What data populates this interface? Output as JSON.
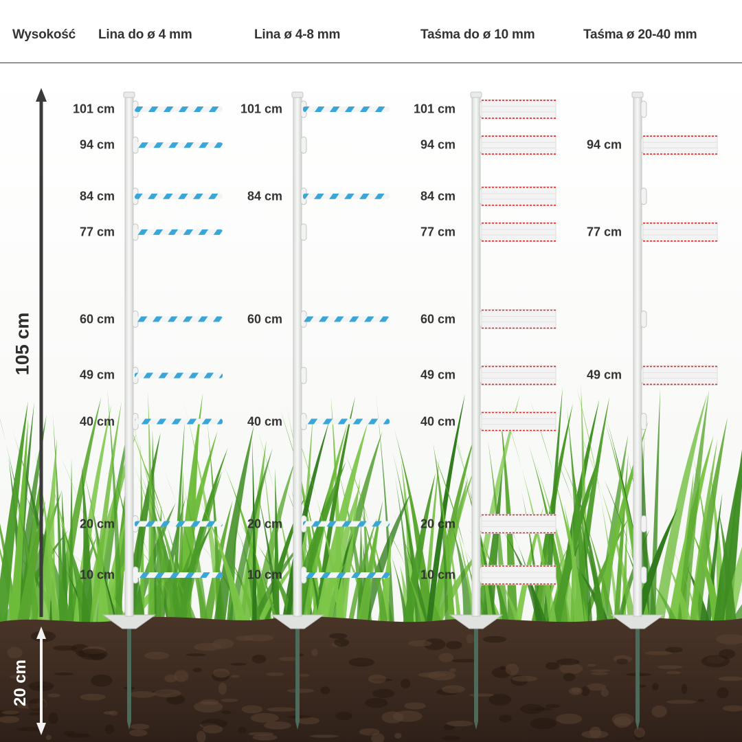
{
  "header": {
    "height_label": "Wysokość",
    "columns": [
      "Lina do ø 4 mm",
      "Lina ø 4-8 mm",
      "Taśma do ø 10 mm",
      "Taśma ø 20-40 mm"
    ]
  },
  "dimensions": {
    "above_ground": "105 cm",
    "below_ground": "20 cm"
  },
  "posts": [
    {
      "conductor": "rope",
      "heights": [
        "101 cm",
        "94 cm",
        "84 cm",
        "77 cm",
        "60 cm",
        "49 cm",
        "40 cm",
        "20 cm",
        "10 cm"
      ]
    },
    {
      "conductor": "rope",
      "heights": [
        "101 cm",
        "84 cm",
        "60 cm",
        "40 cm",
        "20 cm",
        "10 cm"
      ]
    },
    {
      "conductor": "tape",
      "heights": [
        "101 cm",
        "94 cm",
        "84 cm",
        "77 cm",
        "60 cm",
        "49 cm",
        "40 cm",
        "20 cm",
        "10 cm"
      ]
    },
    {
      "conductor": "wide-tape",
      "heights": [
        "94 cm",
        "77 cm",
        "49 cm"
      ]
    }
  ],
  "colors": {
    "rope_blue": "#3aa6d8",
    "tape_red": "#d8322e",
    "grass": "#4f9a2a",
    "soil": "#3b2a20",
    "post": "#eef0ee",
    "text": "#333333"
  }
}
